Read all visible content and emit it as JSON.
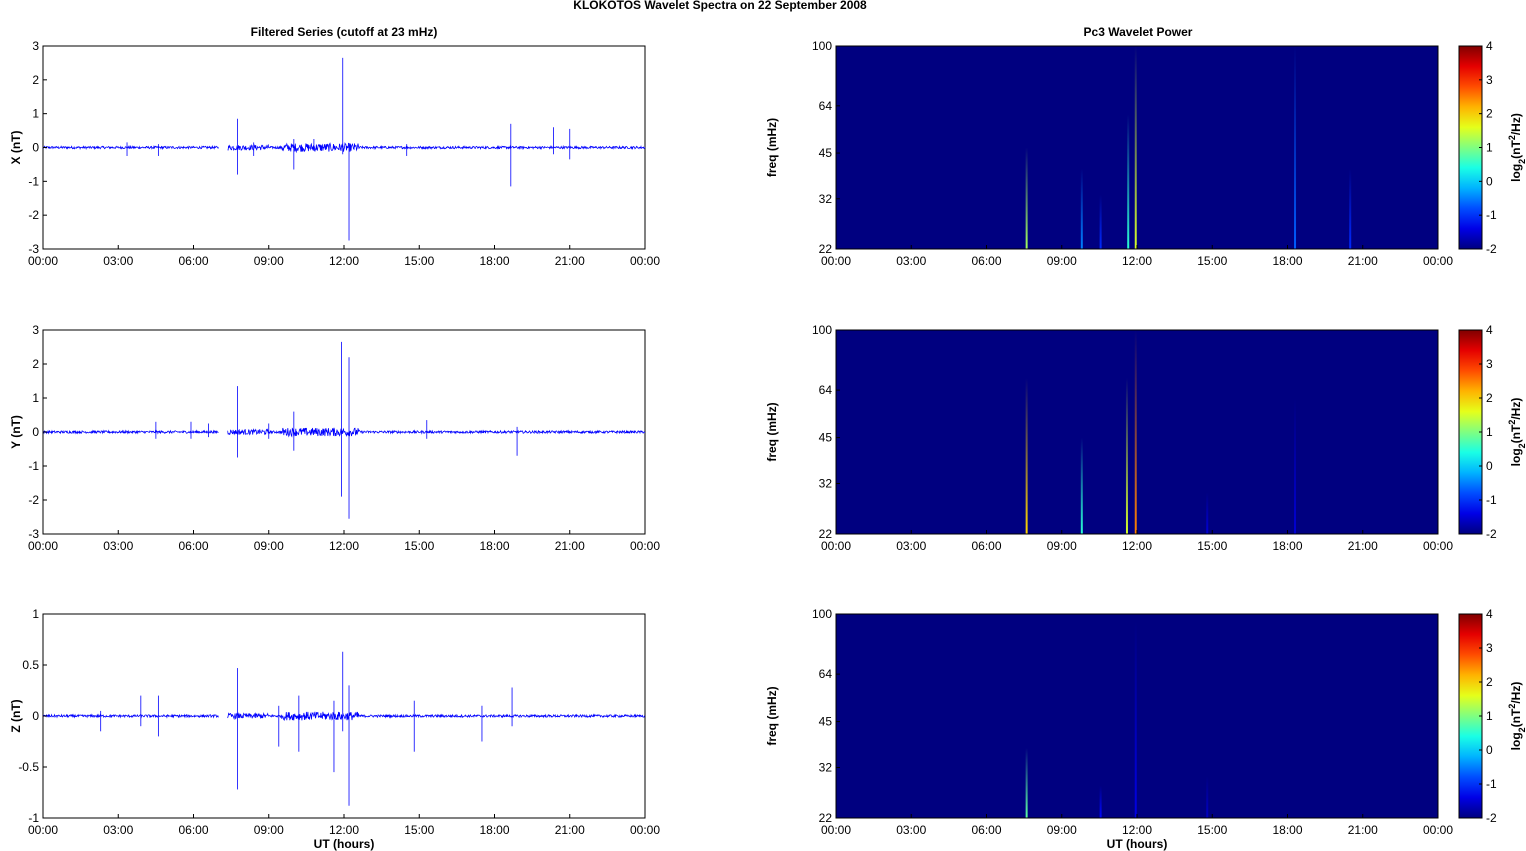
{
  "figure": {
    "title": "KLOKOTOS Wavelet Spectra on 22 September 2008",
    "left_title": "Filtered Series (cutoff at 23 mHz)",
    "right_title": "Pc3 Wavelet Power",
    "xlabel": "UT (hours)"
  },
  "colors": {
    "trace": "#0000ff",
    "background_power": "#00008f",
    "colormap": "jet"
  },
  "chart_data": [
    {
      "type": "line",
      "name": "x-series",
      "ylabel": "X (nT)",
      "x_ticks": [
        "00:00",
        "03:00",
        "06:00",
        "09:00",
        "12:00",
        "15:00",
        "18:00",
        "21:00",
        "00:00"
      ],
      "x_range_hours": [
        0,
        24
      ],
      "ylim": [
        -3,
        3
      ],
      "y_ticks": [
        "3",
        "2",
        "1",
        "0",
        "-1",
        "-2",
        "-3"
      ],
      "y_tick_values": [
        3,
        2,
        1,
        0,
        -1,
        -2,
        -3
      ],
      "data_gap_hours": [
        7.0,
        7.35
      ],
      "spikes": [
        {
          "t": 3.35,
          "pos": 0.15,
          "neg": -0.25
        },
        {
          "t": 4.6,
          "pos": 0.1,
          "neg": -0.25
        },
        {
          "t": 7.75,
          "pos": 0.85,
          "neg": -0.8
        },
        {
          "t": 8.4,
          "pos": 0.15,
          "neg": -0.25
        },
        {
          "t": 10.0,
          "pos": 0.25,
          "neg": -0.65
        },
        {
          "t": 10.8,
          "pos": 0.25,
          "neg": -0.1
        },
        {
          "t": 11.95,
          "pos": 2.65,
          "neg": -0.2
        },
        {
          "t": 12.2,
          "pos": 0.1,
          "neg": -2.75
        },
        {
          "t": 14.5,
          "pos": 0.1,
          "neg": -0.25
        },
        {
          "t": 18.65,
          "pos": 0.7,
          "neg": -1.15
        },
        {
          "t": 20.35,
          "pos": 0.6,
          "neg": -0.2
        },
        {
          "t": 21.0,
          "pos": 0.55,
          "neg": -0.35
        }
      ]
    },
    {
      "type": "line",
      "name": "y-series",
      "ylabel": "Y (nT)",
      "x_ticks": [
        "00:00",
        "03:00",
        "06:00",
        "09:00",
        "12:00",
        "15:00",
        "18:00",
        "21:00",
        "00:00"
      ],
      "x_range_hours": [
        0,
        24
      ],
      "ylim": [
        -3,
        3
      ],
      "y_ticks": [
        "3",
        "2",
        "1",
        "0",
        "-1",
        "-2",
        "-3"
      ],
      "y_tick_values": [
        3,
        2,
        1,
        0,
        -1,
        -2,
        -3
      ],
      "data_gap_hours": [
        7.0,
        7.35
      ],
      "spikes": [
        {
          "t": 4.5,
          "pos": 0.3,
          "neg": -0.2
        },
        {
          "t": 5.9,
          "pos": 0.3,
          "neg": -0.2
        },
        {
          "t": 6.6,
          "pos": 0.25,
          "neg": -0.15
        },
        {
          "t": 7.75,
          "pos": 1.35,
          "neg": -0.75
        },
        {
          "t": 9.0,
          "pos": 0.25,
          "neg": -0.2
        },
        {
          "t": 10.0,
          "pos": 0.6,
          "neg": -0.55
        },
        {
          "t": 11.9,
          "pos": 2.65,
          "neg": -1.9
        },
        {
          "t": 12.2,
          "pos": 2.2,
          "neg": -2.55
        },
        {
          "t": 15.3,
          "pos": 0.35,
          "neg": -0.2
        },
        {
          "t": 18.9,
          "pos": 0.15,
          "neg": -0.7
        }
      ]
    },
    {
      "type": "line",
      "name": "z-series",
      "ylabel": "Z (nT)",
      "xlabel": "UT (hours)",
      "x_ticks": [
        "00:00",
        "03:00",
        "06:00",
        "09:00",
        "12:00",
        "15:00",
        "18:00",
        "21:00",
        "00:00"
      ],
      "x_range_hours": [
        0,
        24
      ],
      "ylim": [
        -1,
        1
      ],
      "y_ticks": [
        "1",
        "0.5",
        "0",
        "-0.5",
        "-1"
      ],
      "y_tick_values": [
        1,
        0.5,
        0,
        -0.5,
        -1
      ],
      "data_gap_hours": [
        7.0,
        7.35
      ],
      "spikes": [
        {
          "t": 2.3,
          "pos": 0.05,
          "neg": -0.15
        },
        {
          "t": 3.9,
          "pos": 0.2,
          "neg": -0.1
        },
        {
          "t": 4.6,
          "pos": 0.2,
          "neg": -0.2
        },
        {
          "t": 7.75,
          "pos": 0.47,
          "neg": -0.72
        },
        {
          "t": 9.4,
          "pos": 0.1,
          "neg": -0.3
        },
        {
          "t": 10.2,
          "pos": 0.2,
          "neg": -0.35
        },
        {
          "t": 11.6,
          "pos": 0.15,
          "neg": -0.55
        },
        {
          "t": 11.95,
          "pos": 0.63,
          "neg": -0.15
        },
        {
          "t": 12.2,
          "pos": 0.3,
          "neg": -0.88
        },
        {
          "t": 14.8,
          "pos": 0.15,
          "neg": -0.35
        },
        {
          "t": 17.5,
          "pos": 0.1,
          "neg": -0.25
        },
        {
          "t": 18.7,
          "pos": 0.28,
          "neg": -0.1
        }
      ]
    },
    {
      "type": "heatmap",
      "name": "x-power",
      "ylabel": "freq (mHz)",
      "x_ticks": [
        "00:00",
        "03:00",
        "06:00",
        "09:00",
        "12:00",
        "15:00",
        "18:00",
        "21:00",
        "00:00"
      ],
      "x_range_hours": [
        0,
        24
      ],
      "y_scale": "log",
      "ylim": [
        22,
        100
      ],
      "y_ticks": [
        "100",
        "64",
        "45",
        "32",
        "22"
      ],
      "y_tick_values": [
        100,
        64,
        45,
        32,
        22
      ],
      "background_level": -2,
      "colorbar": {
        "label": "log2(nT2/Hz)",
        "label_main": "log",
        "label_sub": "2",
        "label_rest": "(nT",
        "label_sup": "2",
        "label_end": "/Hz)",
        "ticks": [
          "4",
          "3",
          "2",
          "1",
          "0",
          "-1",
          "-2"
        ],
        "tick_values": [
          4,
          3,
          2,
          1,
          0,
          -1,
          -2
        ],
        "range": [
          -2,
          4
        ]
      },
      "bursts": [
        {
          "t": 7.6,
          "fmax": 47,
          "level": 1.2
        },
        {
          "t": 9.8,
          "fmax": 40,
          "level": -0.5
        },
        {
          "t": 10.55,
          "fmax": 33,
          "level": -1.0
        },
        {
          "t": 11.65,
          "fmax": 60,
          "level": 0.5
        },
        {
          "t": 11.95,
          "fmax": 100,
          "level": 1.5
        },
        {
          "t": 18.3,
          "fmax": 100,
          "level": -0.7
        },
        {
          "t": 20.5,
          "fmax": 40,
          "level": -1.0
        }
      ]
    },
    {
      "type": "heatmap",
      "name": "y-power",
      "ylabel": "freq (mHz)",
      "x_ticks": [
        "00:00",
        "03:00",
        "06:00",
        "09:00",
        "12:00",
        "15:00",
        "18:00",
        "21:00",
        "00:00"
      ],
      "x_range_hours": [
        0,
        24
      ],
      "y_scale": "log",
      "ylim": [
        22,
        100
      ],
      "y_ticks": [
        "100",
        "64",
        "45",
        "32",
        "22"
      ],
      "y_tick_values": [
        100,
        64,
        45,
        32,
        22
      ],
      "background_level": -2,
      "colorbar": {
        "label": "log2(nT2/Hz)",
        "label_main": "log",
        "label_sub": "2",
        "label_rest": "(nT",
        "label_sup": "2",
        "label_end": "/Hz)",
        "ticks": [
          "4",
          "3",
          "2",
          "1",
          "0",
          "-1",
          "-2"
        ],
        "tick_values": [
          4,
          3,
          2,
          1,
          0,
          -1,
          -2
        ],
        "range": [
          -2,
          4
        ]
      },
      "bursts": [
        {
          "t": 7.6,
          "fmax": 70,
          "level": 2.0
        },
        {
          "t": 9.8,
          "fmax": 45,
          "level": 0.5
        },
        {
          "t": 11.6,
          "fmax": 70,
          "level": 1.5
        },
        {
          "t": 11.95,
          "fmax": 100,
          "level": 2.5
        },
        {
          "t": 14.8,
          "fmax": 30,
          "level": -1.5
        },
        {
          "t": 18.3,
          "fmax": 60,
          "level": -1.5
        }
      ]
    },
    {
      "type": "heatmap",
      "name": "z-power",
      "ylabel": "freq (mHz)",
      "xlabel": "UT (hours)",
      "x_ticks": [
        "00:00",
        "03:00",
        "06:00",
        "09:00",
        "12:00",
        "15:00",
        "18:00",
        "21:00",
        "00:00"
      ],
      "x_range_hours": [
        0,
        24
      ],
      "y_scale": "log",
      "ylim": [
        22,
        100
      ],
      "y_ticks": [
        "100",
        "64",
        "45",
        "32",
        "22"
      ],
      "y_tick_values": [
        100,
        64,
        45,
        32,
        22
      ],
      "background_level": -2,
      "colorbar": {
        "label": "log2(nT2/Hz)",
        "label_main": "log",
        "label_sub": "2",
        "label_rest": "(nT",
        "label_sup": "2",
        "label_end": "/Hz)",
        "ticks": [
          "4",
          "3",
          "2",
          "1",
          "0",
          "-1",
          "-2"
        ],
        "tick_values": [
          4,
          3,
          2,
          1,
          0,
          -1,
          -2
        ],
        "range": [
          -2,
          4
        ]
      },
      "bursts": [
        {
          "t": 7.6,
          "fmax": 37,
          "level": 0.8
        },
        {
          "t": 10.55,
          "fmax": 28,
          "level": -1.2
        },
        {
          "t": 11.95,
          "fmax": 95,
          "level": -1.4
        },
        {
          "t": 14.8,
          "fmax": 30,
          "level": -1.6
        }
      ]
    }
  ]
}
